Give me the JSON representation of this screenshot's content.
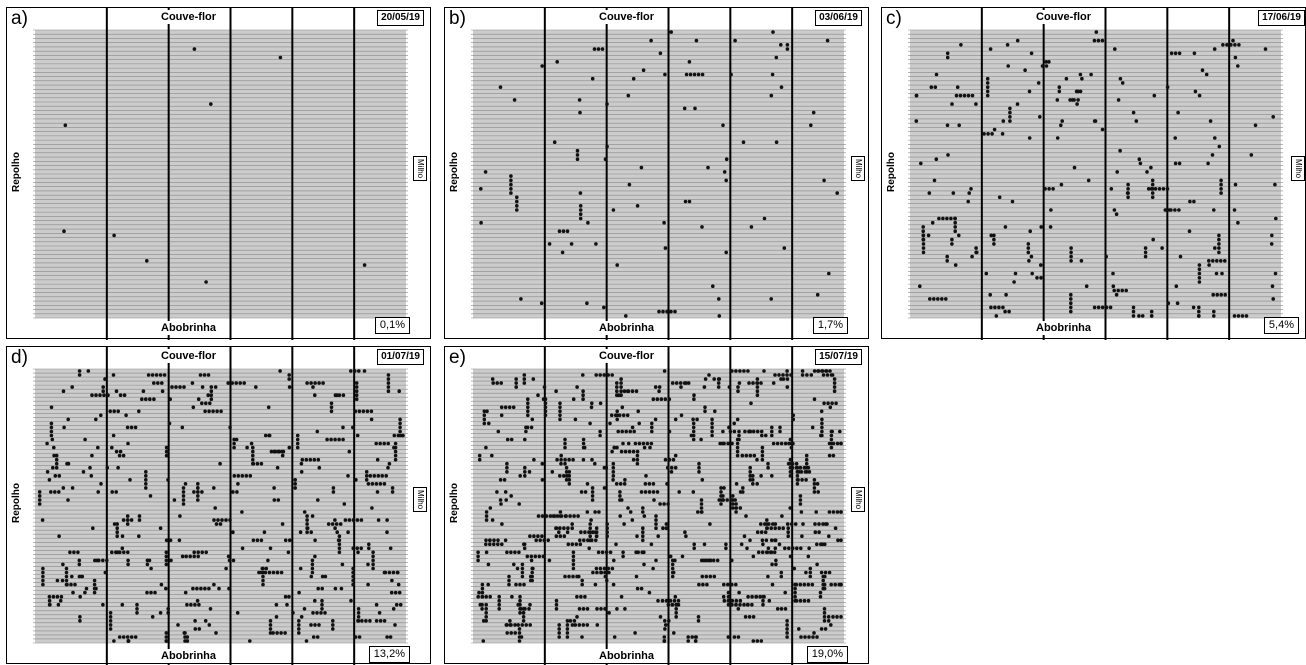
{
  "panels": [
    {
      "id": "a",
      "letter": "a)",
      "date": "20/05/19",
      "percent": "0,1%",
      "count": 9,
      "cluster": 0.05,
      "labels": {
        "top": "Couve-flor",
        "bottom": "Abobrinha",
        "left": "Repolho",
        "right": "Milho"
      }
    },
    {
      "id": "b",
      "letter": "b)",
      "date": "03/06/19",
      "percent": "1,7%",
      "count": 110,
      "cluster": 0.15,
      "labels": {
        "top": "Couve-flor",
        "bottom": "Abobrinha",
        "left": "Repolho",
        "right": "Milho"
      }
    },
    {
      "id": "c",
      "letter": "c)",
      "date": "17/06/19",
      "percent": "5,4%",
      "count": 320,
      "cluster": 0.25,
      "labels": {
        "top": "Couve-flor",
        "bottom": "Abobrinha",
        "left": "Repolho",
        "right": "Milho"
      }
    },
    {
      "id": "d",
      "letter": "d)",
      "date": "01/07/19",
      "percent": "13,2%",
      "count": 650,
      "cluster": 0.35,
      "labels": {
        "top": "Couve-flor",
        "bottom": "Abobrinha",
        "left": "Repolho",
        "right": "Milho"
      }
    },
    {
      "id": "e",
      "letter": "e)",
      "date": "15/07/19",
      "percent": "19,0%",
      "count": 1050,
      "cluster": 0.45,
      "labels": {
        "top": "Couve-flor",
        "bottom": "Abobrinha",
        "left": "Repolho",
        "right": "Milho"
      }
    }
  ],
  "colors": {
    "field": "#cccccc",
    "rows": "#888888",
    "divider": "#000000",
    "dot": "#111111"
  }
}
